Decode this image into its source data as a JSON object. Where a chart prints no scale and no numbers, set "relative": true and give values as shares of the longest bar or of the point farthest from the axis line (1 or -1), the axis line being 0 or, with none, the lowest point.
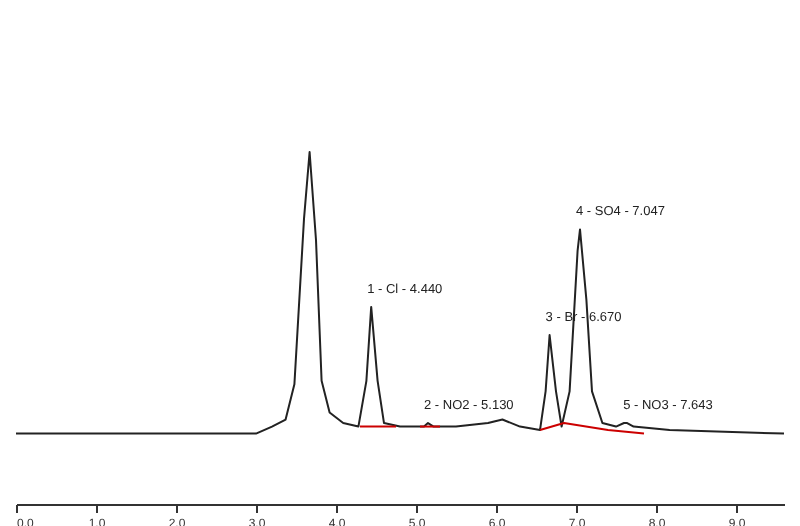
{
  "chart_data": {
    "type": "line",
    "relative": true,
    "grid": false,
    "marker": "none",
    "line_style": "solid",
    "x": [
      0,
      3.0,
      3.2,
      3.37,
      3.48,
      3.6,
      3.67,
      3.75,
      3.82,
      3.92,
      4.09,
      4.28,
      4.38,
      4.44,
      4.52,
      4.6,
      4.8,
      5.1,
      5.15,
      5.22,
      5.5,
      5.9,
      6.08,
      6.3,
      6.55,
      6.62,
      6.67,
      6.75,
      6.82,
      6.92,
      7.02,
      7.05,
      7.13,
      7.2,
      7.33,
      7.5,
      7.6,
      7.64,
      7.72,
      8.17,
      9.6
    ],
    "series": [
      {
        "color": "#222222",
        "values": [
          0.2,
          0.2,
          0.22,
          0.24,
          0.34,
          0.81,
          1,
          0.75,
          0.35,
          0.26,
          0.23,
          0.22,
          0.35,
          0.56,
          0.35,
          0.23,
          0.22,
          0.22,
          0.23,
          0.22,
          0.22,
          0.23,
          0.24,
          0.22,
          0.21,
          0.32,
          0.48,
          0.32,
          0.22,
          0.32,
          0.72,
          0.78,
          0.58,
          0.32,
          0.23,
          0.22,
          0.23,
          0.23,
          0.22,
          0.21,
          0.2
        ]
      },
      {
        "type": "line",
        "color": "#cc0000",
        "x": [
          4.3,
          4.75
        ],
        "values": [
          0.22,
          0.22
        ]
      },
      {
        "type": "line",
        "color": "#cc0000",
        "x": [
          5.05,
          5.3
        ],
        "values": [
          0.22,
          0.22
        ]
      },
      {
        "type": "line",
        "color": "#cc0000",
        "x": [
          6.55,
          6.85,
          7.4,
          7.85
        ],
        "values": [
          0.21,
          0.23,
          0.21,
          0.2
        ]
      }
    ],
    "xlim": [
      0,
      9.6
    ],
    "xticks": [
      {
        "value": 0,
        "label": "0.0"
      },
      {
        "value": 1,
        "label": "1.0"
      },
      {
        "value": 2,
        "label": "2.0"
      },
      {
        "value": 3,
        "label": "3.0"
      },
      {
        "value": 4,
        "label": "4.0"
      },
      {
        "value": 5,
        "label": "5.0"
      },
      {
        "value": 6,
        "label": "6.0"
      },
      {
        "value": 7,
        "label": "7.0"
      },
      {
        "value": 8,
        "label": "8.0"
      },
      {
        "value": 9,
        "label": "9.0"
      }
    ],
    "annotations": [
      {
        "text": "1 - Cl - 4.440",
        "x": 4.44,
        "y": 0.56
      },
      {
        "text": "2 - NO2 - 5.130",
        "x": 5.15,
        "y": 0.23
      },
      {
        "text": "3 - Br - 6.670",
        "x": 6.67,
        "y": 0.48
      },
      {
        "text": "4 - SO4 - 7.047",
        "x": 7.05,
        "y": 0.78
      },
      {
        "text": "5 - NO3 - 7.643",
        "x": 7.64,
        "y": 0.23
      }
    ]
  }
}
